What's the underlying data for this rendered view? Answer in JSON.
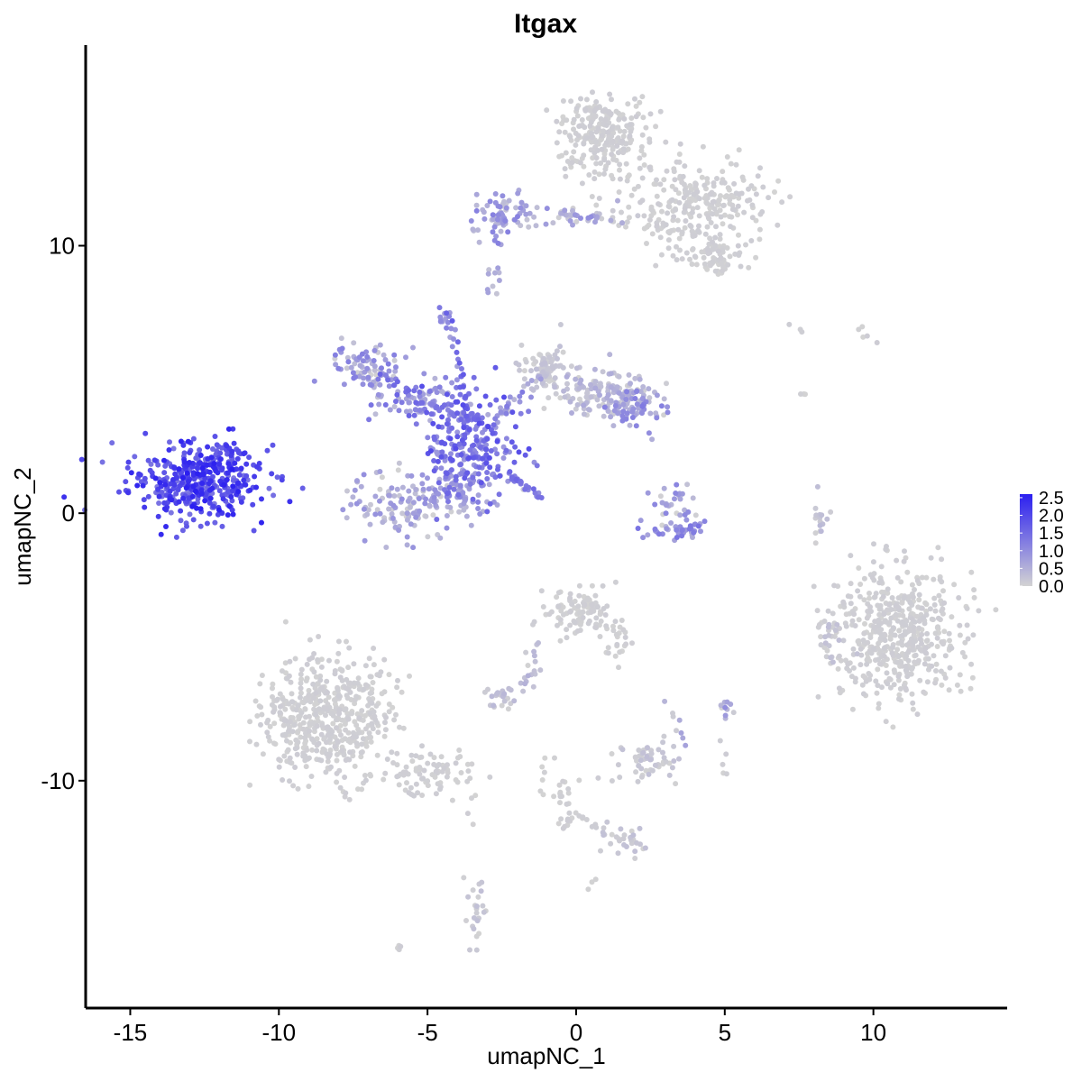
{
  "chart_data": {
    "type": "scatter",
    "title": "Itgax",
    "xlabel": "umapNC_1",
    "ylabel": "umapNC_2",
    "xlim": [
      -16.5,
      14.5
    ],
    "ylim": [
      -18.5,
      17.5
    ],
    "x_ticks": [
      {
        "value": -15,
        "label": "-15"
      },
      {
        "value": -10,
        "label": "-10"
      },
      {
        "value": -5,
        "label": "-5"
      },
      {
        "value": 0,
        "label": "0"
      },
      {
        "value": 5,
        "label": "5"
      },
      {
        "value": 10,
        "label": "10"
      }
    ],
    "y_ticks": [
      {
        "value": 10,
        "label": "10"
      },
      {
        "value": 0,
        "label": "0"
      },
      {
        "value": -10,
        "label": "-10"
      }
    ],
    "color_scale": {
      "low_color": "#d3d3d3",
      "high_color": "#2b1ff0",
      "min": 0,
      "max": 2.6,
      "legend_placement": "right",
      "ticks": [
        {
          "value": 2.5,
          "label": "2.5"
        },
        {
          "value": 2.0,
          "label": "2.0"
        },
        {
          "value": 1.5,
          "label": "1.5"
        },
        {
          "value": 1.0,
          "label": "1.0"
        },
        {
          "value": 0.5,
          "label": "0.5"
        },
        {
          "value": 0.0,
          "label": "0.0"
        }
      ]
    },
    "grid": false,
    "clusters": [
      {
        "cx": -12.8,
        "cy": 1.2,
        "sx": 1.1,
        "sy": 0.7,
        "n": 420,
        "expr_min": 1.3,
        "expr_max": 2.6
      },
      {
        "cx": -11.6,
        "cy": 2.2,
        "sx": 0.2,
        "sy": 0.3,
        "n": 20,
        "expr_min": 1.5,
        "expr_max": 2.4
      },
      {
        "cx": 0.8,
        "cy": 14.1,
        "sx": 0.8,
        "sy": 0.8,
        "n": 260,
        "expr_min": 0,
        "expr_max": 0.1
      },
      {
        "cx": 4.2,
        "cy": 11.6,
        "sx": 1.2,
        "sy": 0.8,
        "n": 240,
        "expr_min": 0,
        "expr_max": 0.1
      },
      {
        "cx": 4.8,
        "cy": 9.6,
        "sx": 0.6,
        "sy": 0.4,
        "n": 70,
        "expr_min": 0,
        "expr_max": 0.1
      },
      {
        "cx": -2.6,
        "cy": 11.2,
        "sx": 0.35,
        "sy": 0.45,
        "n": 60,
        "expr_min": 0.2,
        "expr_max": 1.2
      },
      {
        "cx": -0.2,
        "cy": 11.0,
        "sx": 1.2,
        "sy": 0.2,
        "n": 40,
        "expr_min": 0,
        "expr_max": 0.8
      },
      {
        "cx": -2.8,
        "cy": 8.8,
        "sx": 0.15,
        "sy": 0.35,
        "n": 10,
        "expr_min": 0.2,
        "expr_max": 0.8
      },
      {
        "cx": -4.4,
        "cy": 7.2,
        "sx": 0.15,
        "sy": 0.25,
        "n": 12,
        "expr_min": 0.6,
        "expr_max": 1.4
      },
      {
        "cx": -7.0,
        "cy": 5.4,
        "sx": 0.6,
        "sy": 0.4,
        "n": 80,
        "expr_min": 0,
        "expr_max": 1.3
      },
      {
        "cx": -5.2,
        "cy": 4.2,
        "sx": 0.8,
        "sy": 0.5,
        "n": 80,
        "expr_min": 0.3,
        "expr_max": 1.6
      },
      {
        "cx": -3.5,
        "cy": 2.6,
        "sx": 0.8,
        "sy": 1.0,
        "n": 240,
        "expr_min": 0.8,
        "expr_max": 2.0
      },
      {
        "cx": -5.6,
        "cy": 0.4,
        "sx": 1.0,
        "sy": 0.6,
        "n": 150,
        "expr_min": 0,
        "expr_max": 1.0
      },
      {
        "cx": -3.8,
        "cy": 0.8,
        "sx": 0.5,
        "sy": 0.6,
        "n": 60,
        "expr_min": 0.5,
        "expr_max": 1.6
      },
      {
        "cx": -1.0,
        "cy": 5.4,
        "sx": 0.4,
        "sy": 0.5,
        "n": 80,
        "expr_min": 0,
        "expr_max": 0.3
      },
      {
        "cx": 0.8,
        "cy": 4.5,
        "sx": 0.9,
        "sy": 0.4,
        "n": 140,
        "expr_min": 0,
        "expr_max": 0.6
      },
      {
        "cx": 2.0,
        "cy": 4.0,
        "sx": 0.5,
        "sy": 0.4,
        "n": 70,
        "expr_min": 0.3,
        "expr_max": 1.3
      },
      {
        "cx": 3.3,
        "cy": 0.4,
        "sx": 0.3,
        "sy": 0.4,
        "n": 30,
        "expr_min": 0,
        "expr_max": 1.2
      },
      {
        "cx": 3.3,
        "cy": -0.6,
        "sx": 0.6,
        "sy": 0.2,
        "n": 40,
        "expr_min": 0.4,
        "expr_max": 1.4
      },
      {
        "cx": 8.2,
        "cy": -0.3,
        "sx": 0.15,
        "sy": 0.5,
        "n": 15,
        "expr_min": 0,
        "expr_max": 0.4
      },
      {
        "cx": 10.8,
        "cy": -4.5,
        "sx": 1.1,
        "sy": 1.2,
        "n": 500,
        "expr_min": 0,
        "expr_max": 0.1
      },
      {
        "cx": 8.6,
        "cy": -4.8,
        "sx": 0.2,
        "sy": 0.5,
        "n": 20,
        "expr_min": 0,
        "expr_max": 0.3
      },
      {
        "cx": 0.2,
        "cy": -3.7,
        "sx": 0.6,
        "sy": 0.5,
        "n": 100,
        "expr_min": 0,
        "expr_max": 0.1
      },
      {
        "cx": 1.3,
        "cy": -4.8,
        "sx": 0.3,
        "sy": 0.4,
        "n": 25,
        "expr_min": 0,
        "expr_max": 0.1
      },
      {
        "cx": -2.6,
        "cy": -6.9,
        "sx": 0.3,
        "sy": 0.2,
        "n": 25,
        "expr_min": 0,
        "expr_max": 0.4
      },
      {
        "cx": -1.5,
        "cy": -5.8,
        "sx": 0.15,
        "sy": 0.5,
        "n": 10,
        "expr_min": 0,
        "expr_max": 0.4
      },
      {
        "cx": 5.0,
        "cy": -7.3,
        "sx": 0.15,
        "sy": 0.2,
        "n": 10,
        "expr_min": 0,
        "expr_max": 1.0
      },
      {
        "cx": -8.4,
        "cy": -7.7,
        "sx": 1.1,
        "sy": 1.2,
        "n": 500,
        "expr_min": 0,
        "expr_max": 0.1
      },
      {
        "cx": -5.0,
        "cy": -9.7,
        "sx": 0.8,
        "sy": 0.4,
        "n": 80,
        "expr_min": 0,
        "expr_max": 0.1
      },
      {
        "cx": 2.4,
        "cy": -9.3,
        "sx": 0.5,
        "sy": 0.4,
        "n": 60,
        "expr_min": 0,
        "expr_max": 0.3
      },
      {
        "cx": -0.4,
        "cy": -10.8,
        "sx": 0.2,
        "sy": 0.6,
        "n": 25,
        "expr_min": 0,
        "expr_max": 0.1
      },
      {
        "cx": 1.8,
        "cy": -12.3,
        "sx": 0.5,
        "sy": 0.3,
        "n": 25,
        "expr_min": 0,
        "expr_max": 0.3
      },
      {
        "cx": -3.4,
        "cy": -14.8,
        "sx": 0.2,
        "sy": 0.6,
        "n": 25,
        "expr_min": 0,
        "expr_max": 0.3
      },
      {
        "cx": 9.7,
        "cy": 6.7,
        "sx": 0.15,
        "sy": 0.15,
        "n": 5,
        "expr_min": 0,
        "expr_max": 0.1
      },
      {
        "cx": -6.0,
        "cy": -16.2,
        "sx": 0.08,
        "sy": 0.08,
        "n": 4,
        "expr_min": 0,
        "expr_max": 0.1
      },
      {
        "cx": 0.5,
        "cy": -13.9,
        "sx": 0.1,
        "sy": 0.1,
        "n": 3,
        "expr_min": 0,
        "expr_max": 0.1
      }
    ],
    "bridges": [
      {
        "from": [
          -3.0,
          11.7
        ],
        "to": [
          0.8,
          11.0
        ],
        "n": 20,
        "expr_min": 0.1,
        "expr_max": 1.2
      },
      {
        "from": [
          1.2,
          11.0
        ],
        "to": [
          4.2,
          10.4
        ],
        "n": 20,
        "expr_min": 0,
        "expr_max": 0.1
      },
      {
        "from": [
          -2.2,
          1.4
        ],
        "to": [
          -1.2,
          0.6
        ],
        "n": 25,
        "expr_min": 1.0,
        "expr_max": 1.6
      },
      {
        "from": [
          -4.3,
          7.5
        ],
        "to": [
          -3.6,
          3.6
        ],
        "n": 20,
        "expr_min": 0.6,
        "expr_max": 1.8
      },
      {
        "from": [
          -3.0,
          3.2
        ],
        "to": [
          -1.2,
          5.2
        ],
        "n": 20,
        "expr_min": 0.4,
        "expr_max": 1.4
      },
      {
        "from": [
          -6.6,
          5.2
        ],
        "to": [
          -4.0,
          3.6
        ],
        "n": 25,
        "expr_min": 0.5,
        "expr_max": 1.6
      },
      {
        "from": [
          -0.4,
          -11.0
        ],
        "to": [
          1.8,
          -12.3
        ],
        "n": 14,
        "expr_min": 0,
        "expr_max": 0.1
      },
      {
        "from": [
          -3.4,
          -10.0
        ],
        "to": [
          -3.6,
          -11.8
        ],
        "n": 4,
        "expr_min": 0,
        "expr_max": 0.1
      },
      {
        "from": [
          7.0,
          6.9
        ],
        "to": [
          8.0,
          6.6
        ],
        "n": 3,
        "expr_min": 0,
        "expr_max": 0.1
      },
      {
        "from": [
          7.6,
          4.6
        ],
        "to": [
          7.7,
          4.4
        ],
        "n": 3,
        "expr_min": 0,
        "expr_max": 0.1
      },
      {
        "from": [
          -1.2,
          -5.5
        ],
        "to": [
          -2.0,
          -6.8
        ],
        "n": 8,
        "expr_min": 0,
        "expr_max": 0.5
      },
      {
        "from": [
          3.0,
          -7.0
        ],
        "to": [
          3.6,
          -8.6
        ],
        "n": 8,
        "expr_min": 0,
        "expr_max": 0.8
      },
      {
        "from": [
          5.0,
          -8.0
        ],
        "to": [
          5.0,
          -9.8
        ],
        "n": 5,
        "expr_min": 0,
        "expr_max": 0.1
      },
      {
        "from": [
          -1.0,
          -8.5
        ],
        "to": [
          -1.2,
          -10.5
        ],
        "n": 6,
        "expr_min": 0,
        "expr_max": 0.1
      }
    ]
  }
}
